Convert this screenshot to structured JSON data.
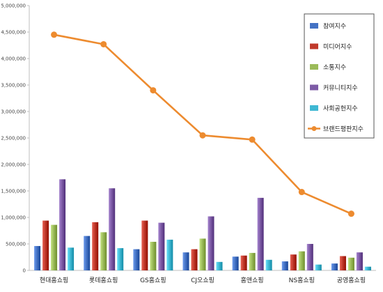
{
  "chart_data": {
    "type": "bar",
    "categories": [
      "현대홈쇼핑",
      "롯데홈쇼핑",
      "GS홈쇼핑",
      "CJ오쇼핑",
      "홈앤쇼핑",
      "NS홈쇼핑",
      "공영홈쇼핑"
    ],
    "series": [
      {
        "name": "참여지수",
        "type": "bar",
        "color": "#4472C4",
        "values": [
          460000,
          650000,
          400000,
          340000,
          260000,
          170000,
          130000
        ]
      },
      {
        "name": "미디어지수",
        "type": "bar",
        "color": "#C0392B",
        "values": [
          940000,
          910000,
          940000,
          400000,
          280000,
          300000,
          270000
        ]
      },
      {
        "name": "소통지수",
        "type": "bar",
        "color": "#9BBB59",
        "values": [
          860000,
          720000,
          540000,
          600000,
          330000,
          360000,
          240000
        ]
      },
      {
        "name": "커뮤니티지수",
        "type": "bar",
        "color": "#7D5BA6",
        "values": [
          1720000,
          1550000,
          900000,
          1020000,
          1370000,
          500000,
          340000
        ]
      },
      {
        "name": "사회공헌지수",
        "type": "bar",
        "color": "#3FB8D3",
        "values": [
          430000,
          420000,
          580000,
          160000,
          200000,
          110000,
          70000
        ]
      },
      {
        "name": "브랜드평판지수",
        "type": "line",
        "color": "#ED8B2F",
        "values": [
          4450000,
          4270000,
          3400000,
          2550000,
          2470000,
          1480000,
          1070000
        ]
      }
    ],
    "y_ticks": [
      "0",
      "500,000",
      "1,000,000",
      "1,500,000",
      "2,000,000",
      "2,500,000",
      "3,000,000",
      "3,500,000",
      "4,000,000",
      "4,500,000",
      "5,000,000"
    ],
    "ylim": [
      0,
      5000000
    ],
    "title": "",
    "xlabel": "",
    "ylabel": "",
    "grid": false,
    "legend_position": "top-right"
  }
}
